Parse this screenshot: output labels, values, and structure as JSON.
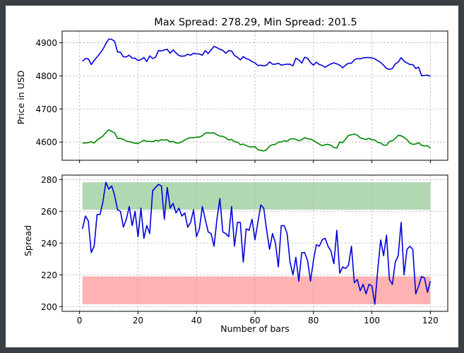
{
  "chart_data": [
    {
      "type": "line",
      "title": "Max Spread: 278.29, Min Spread: 201.5",
      "xlabel": "",
      "ylabel": "Price in USD",
      "xlim": [
        -5.95,
        125.95
      ],
      "ylim": [
        4545,
        4935
      ],
      "yticks": [
        4600,
        4700,
        4800,
        4900
      ],
      "xticks": [
        0,
        20,
        40,
        60,
        80,
        100,
        120
      ],
      "grid": true,
      "series": [
        {
          "color": "#0000dd",
          "x": [
            1,
            2,
            3,
            4,
            5,
            6,
            7,
            8,
            9,
            10,
            11,
            12,
            13,
            14,
            15,
            16,
            17,
            18,
            19,
            20,
            21,
            22,
            23,
            24,
            25,
            26,
            27,
            28,
            29,
            30,
            31,
            32,
            33,
            34,
            35,
            36,
            37,
            38,
            39,
            40,
            41,
            42,
            43,
            44,
            45,
            46,
            47,
            48,
            49,
            50,
            51,
            52,
            53,
            54,
            55,
            56,
            57,
            58,
            59,
            60,
            61,
            62,
            63,
            64,
            65,
            66,
            67,
            68,
            69,
            70,
            71,
            72,
            73,
            74,
            75,
            76,
            77,
            78,
            79,
            80,
            81,
            82,
            83,
            84,
            85,
            86,
            87,
            88,
            89,
            90,
            91,
            92,
            93,
            94,
            95,
            96,
            97,
            98,
            99,
            100,
            101,
            102,
            103,
            104,
            105,
            106,
            107,
            108,
            109,
            110,
            111,
            112,
            113,
            114,
            115,
            116,
            117,
            118,
            119,
            120
          ],
          "values": [
            4844,
            4852,
            4851,
            4834,
            4846,
            4857,
            4868,
            4880,
            4897,
            4911,
            4910,
            4904,
            4872,
            4871,
            4857,
            4857,
            4862,
            4853,
            4853,
            4846,
            4849,
            4855,
            4843,
            4860,
            4852,
            4856,
            4876,
            4875,
            4878,
            4880,
            4868,
            4878,
            4869,
            4861,
            4859,
            4860,
            4865,
            4862,
            4868,
            4866,
            4866,
            4862,
            4876,
            4867,
            4878,
            4889,
            4885,
            4880,
            4877,
            4868,
            4876,
            4875,
            4861,
            4856,
            4848,
            4858,
            4852,
            4849,
            4843,
            4839,
            4831,
            4832,
            4830,
            4832,
            4842,
            4835,
            4835,
            4838,
            4832,
            4834,
            4835,
            4835,
            4830,
            4853,
            4848,
            4838,
            4856,
            4853,
            4840,
            4832,
            4841,
            4834,
            4831,
            4826,
            4831,
            4836,
            4839,
            4836,
            4832,
            4824,
            4832,
            4838,
            4838,
            4848,
            4852,
            4851,
            4854,
            4855,
            4855,
            4854,
            4851,
            4846,
            4840,
            4832,
            4822,
            4819,
            4822,
            4836,
            4841,
            4855,
            4844,
            4839,
            4834,
            4834,
            4822,
            4826,
            4800,
            4801,
            4802,
            4798
          ]
        },
        {
          "color": "#008800",
          "x": [
            1,
            2,
            3,
            4,
            5,
            6,
            7,
            8,
            9,
            10,
            11,
            12,
            13,
            14,
            15,
            16,
            17,
            18,
            19,
            20,
            21,
            22,
            23,
            24,
            25,
            26,
            27,
            28,
            29,
            30,
            31,
            32,
            33,
            34,
            35,
            36,
            37,
            38,
            39,
            40,
            41,
            42,
            43,
            44,
            45,
            46,
            47,
            48,
            49,
            50,
            51,
            52,
            53,
            54,
            55,
            56,
            57,
            58,
            59,
            60,
            61,
            62,
            63,
            64,
            65,
            66,
            67,
            68,
            69,
            70,
            71,
            72,
            73,
            74,
            75,
            76,
            77,
            78,
            79,
            80,
            81,
            82,
            83,
            84,
            85,
            86,
            87,
            88,
            89,
            90,
            91,
            92,
            93,
            94,
            95,
            96,
            97,
            98,
            99,
            100,
            101,
            102,
            103,
            104,
            105,
            106,
            107,
            108,
            109,
            110,
            111,
            112,
            113,
            114,
            115,
            116,
            117,
            118,
            119,
            120
          ],
          "values": [
            4597,
            4597,
            4598,
            4601,
            4597,
            4606,
            4612,
            4618,
            4629,
            4637,
            4632,
            4628,
            4611,
            4611,
            4608,
            4603,
            4601,
            4599,
            4596,
            4596,
            4600,
            4605,
            4602,
            4602,
            4601,
            4605,
            4603,
            4607,
            4606,
            4607,
            4600,
            4602,
            4597,
            4597,
            4601,
            4606,
            4611,
            4613,
            4613,
            4615,
            4615,
            4619,
            4627,
            4628,
            4627,
            4628,
            4622,
            4618,
            4617,
            4613,
            4606,
            4608,
            4601,
            4600,
            4592,
            4594,
            4589,
            4586,
            4585,
            4586,
            4577,
            4575,
            4573,
            4577,
            4588,
            4592,
            4593,
            4600,
            4600,
            4604,
            4602,
            4609,
            4610,
            4608,
            4604,
            4607,
            4613,
            4610,
            4609,
            4605,
            4599,
            4594,
            4589,
            4592,
            4593,
            4590,
            4583,
            4582,
            4600,
            4598,
            4609,
            4620,
            4622,
            4624,
            4621,
            4613,
            4610,
            4608,
            4611,
            4607,
            4606,
            4599,
            4597,
            4591,
            4590,
            4602,
            4604,
            4611,
            4620,
            4619,
            4614,
            4607,
            4597,
            4593,
            4594,
            4598,
            4590,
            4588,
            4589,
            4582
          ]
        }
      ]
    },
    {
      "type": "line",
      "title": "",
      "xlabel": "Number of bars",
      "ylabel": "Spread",
      "xlim": [
        -5.95,
        125.95
      ],
      "ylim": [
        197.0,
        282.8
      ],
      "yticks": [
        200,
        220,
        240,
        260,
        280
      ],
      "xticks": [
        0,
        20,
        40,
        60,
        80,
        100,
        120
      ],
      "xticklabels": [
        "0",
        "20",
        "40",
        "60",
        "80",
        "100",
        "120"
      ],
      "grid": true,
      "bands": [
        {
          "color": "#b2d8b2",
          "x": [
            1,
            120
          ],
          "y": [
            261,
            278.29
          ]
        },
        {
          "color": "#ffb2b2",
          "x": [
            1,
            120
          ],
          "y": [
            201.5,
            219
          ]
        }
      ],
      "series": [
        {
          "color": "#0000dd",
          "x": [
            1,
            2,
            3,
            4,
            5,
            6,
            7,
            8,
            9,
            10,
            11,
            12,
            13,
            14,
            15,
            16,
            17,
            18,
            19,
            20,
            21,
            22,
            23,
            24,
            25,
            26,
            27,
            28,
            29,
            30,
            31,
            32,
            33,
            34,
            35,
            36,
            37,
            38,
            39,
            40,
            41,
            42,
            43,
            44,
            45,
            46,
            47,
            48,
            49,
            50,
            51,
            52,
            53,
            54,
            55,
            56,
            57,
            58,
            59,
            60,
            61,
            62,
            63,
            64,
            65,
            66,
            67,
            68,
            69,
            70,
            71,
            72,
            73,
            74,
            75,
            76,
            77,
            78,
            79,
            80,
            81,
            82,
            83,
            84,
            85,
            86,
            87,
            88,
            89,
            90,
            91,
            92,
            93,
            94,
            95,
            96,
            97,
            98,
            99,
            100,
            101,
            102,
            103,
            104,
            105,
            106,
            107,
            108,
            109,
            110,
            111,
            112,
            113,
            114,
            115,
            116,
            117,
            118,
            119,
            120
          ],
          "values": [
            249,
            257,
            254,
            234,
            238,
            258,
            258,
            266,
            278.29,
            274,
            276,
            270,
            261,
            260,
            250,
            255,
            263,
            251,
            260,
            244,
            262,
            243,
            251,
            246,
            273,
            275,
            277,
            276,
            255,
            275,
            262,
            265,
            259,
            262,
            257,
            259,
            250,
            253,
            261,
            244,
            249,
            263,
            255,
            247,
            246,
            238,
            255,
            268,
            247,
            246,
            244,
            263,
            238,
            253,
            253,
            228,
            249,
            248,
            255,
            242,
            253,
            264,
            262,
            248,
            236,
            246,
            240,
            225,
            251,
            251,
            246,
            228,
            220,
            231,
            216,
            234,
            234,
            229,
            216,
            229,
            239,
            238,
            242,
            243,
            238,
            235,
            227,
            248,
            221,
            225,
            224,
            226,
            238,
            215,
            217,
            210,
            214,
            208,
            214,
            213,
            201.5,
            223,
            242,
            232,
            245,
            217,
            214,
            228,
            232,
            253,
            220,
            236,
            238,
            236,
            208,
            213,
            219,
            218,
            209,
            216
          ]
        }
      ]
    }
  ]
}
